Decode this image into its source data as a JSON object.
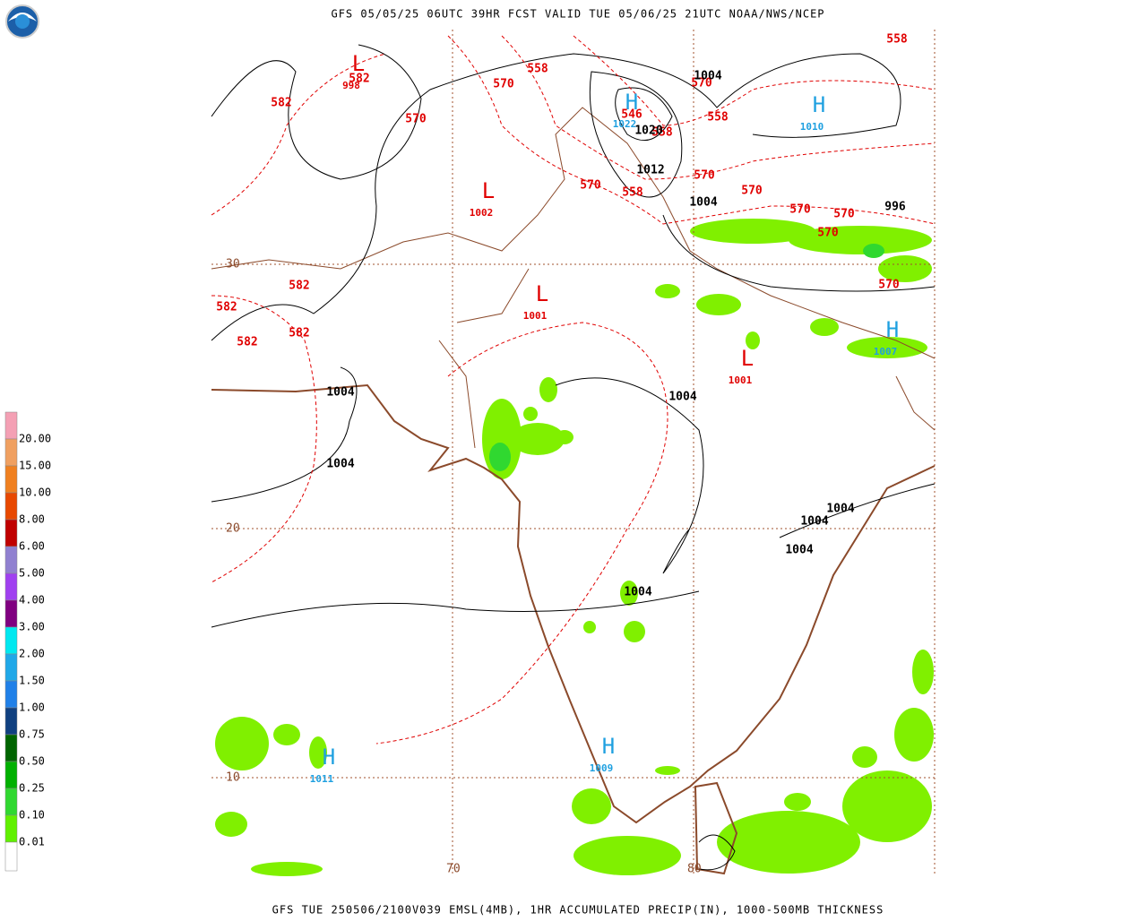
{
  "header": {
    "title": "GFS 05/05/25 06UTC 39HR FCST VALID TUE 05/06/25 21UTC NOAA/NWS/NCEP"
  },
  "footer": {
    "text": "GFS TUE 250506/2100V039 EMSL(4MB), 1HR ACCUMULATED PRECIP(IN), 1000-500MB THICKNESS"
  },
  "legend": {
    "labels": [
      "20.00",
      "15.00",
      "10.00",
      "8.00",
      "6.00",
      "5.00",
      "4.00",
      "3.00",
      "2.00",
      "1.50",
      "1.00",
      "0.75",
      "0.50",
      "0.25",
      "0.10",
      "0.01"
    ],
    "colors": [
      "#f4a0b4",
      "#f0a060",
      "#f08020",
      "#e84800",
      "#c00000",
      "#9080d0",
      "#a040f0",
      "#800080",
      "#00e8f0",
      "#20a8e8",
      "#2080e8",
      "#104080",
      "#006400",
      "#00b000",
      "#30d830",
      "#60f000",
      "#ffffff"
    ]
  },
  "graticule": {
    "latitudes": [
      "30",
      "20",
      "10"
    ],
    "longitudes": [
      "70",
      "80"
    ]
  },
  "centers": [
    {
      "symbol": "L",
      "value": "998",
      "color": "#e00000"
    },
    {
      "symbol": "L",
      "value": "1002",
      "color": "#e00000"
    },
    {
      "symbol": "L",
      "value": "1001",
      "color": "#e00000"
    },
    {
      "symbol": "L",
      "value": "1001",
      "color": "#e00000"
    },
    {
      "symbol": "H",
      "value": "1022",
      "color": "#1fa0e0"
    },
    {
      "symbol": "H",
      "value": "1010",
      "color": "#1fa0e0"
    },
    {
      "symbol": "H",
      "value": "1007",
      "color": "#1fa0e0"
    },
    {
      "symbol": "H",
      "value": "1011",
      "color": "#1fa0e0"
    },
    {
      "symbol": "H",
      "value": "1009",
      "color": "#1fa0e0"
    }
  ],
  "thickness_labels": [
    "582",
    "582",
    "570",
    "570",
    "558",
    "570",
    "546",
    "558",
    "558",
    "570",
    "570",
    "570",
    "558",
    "570",
    "570",
    "570",
    "570",
    "558",
    "582",
    "582",
    "582",
    "582"
  ],
  "isobar_labels": [
    "1004",
    "1020",
    "1012",
    "1004",
    "996",
    "1004",
    "1004",
    "1004",
    "1004",
    "1004",
    "1004",
    "1004"
  ]
}
